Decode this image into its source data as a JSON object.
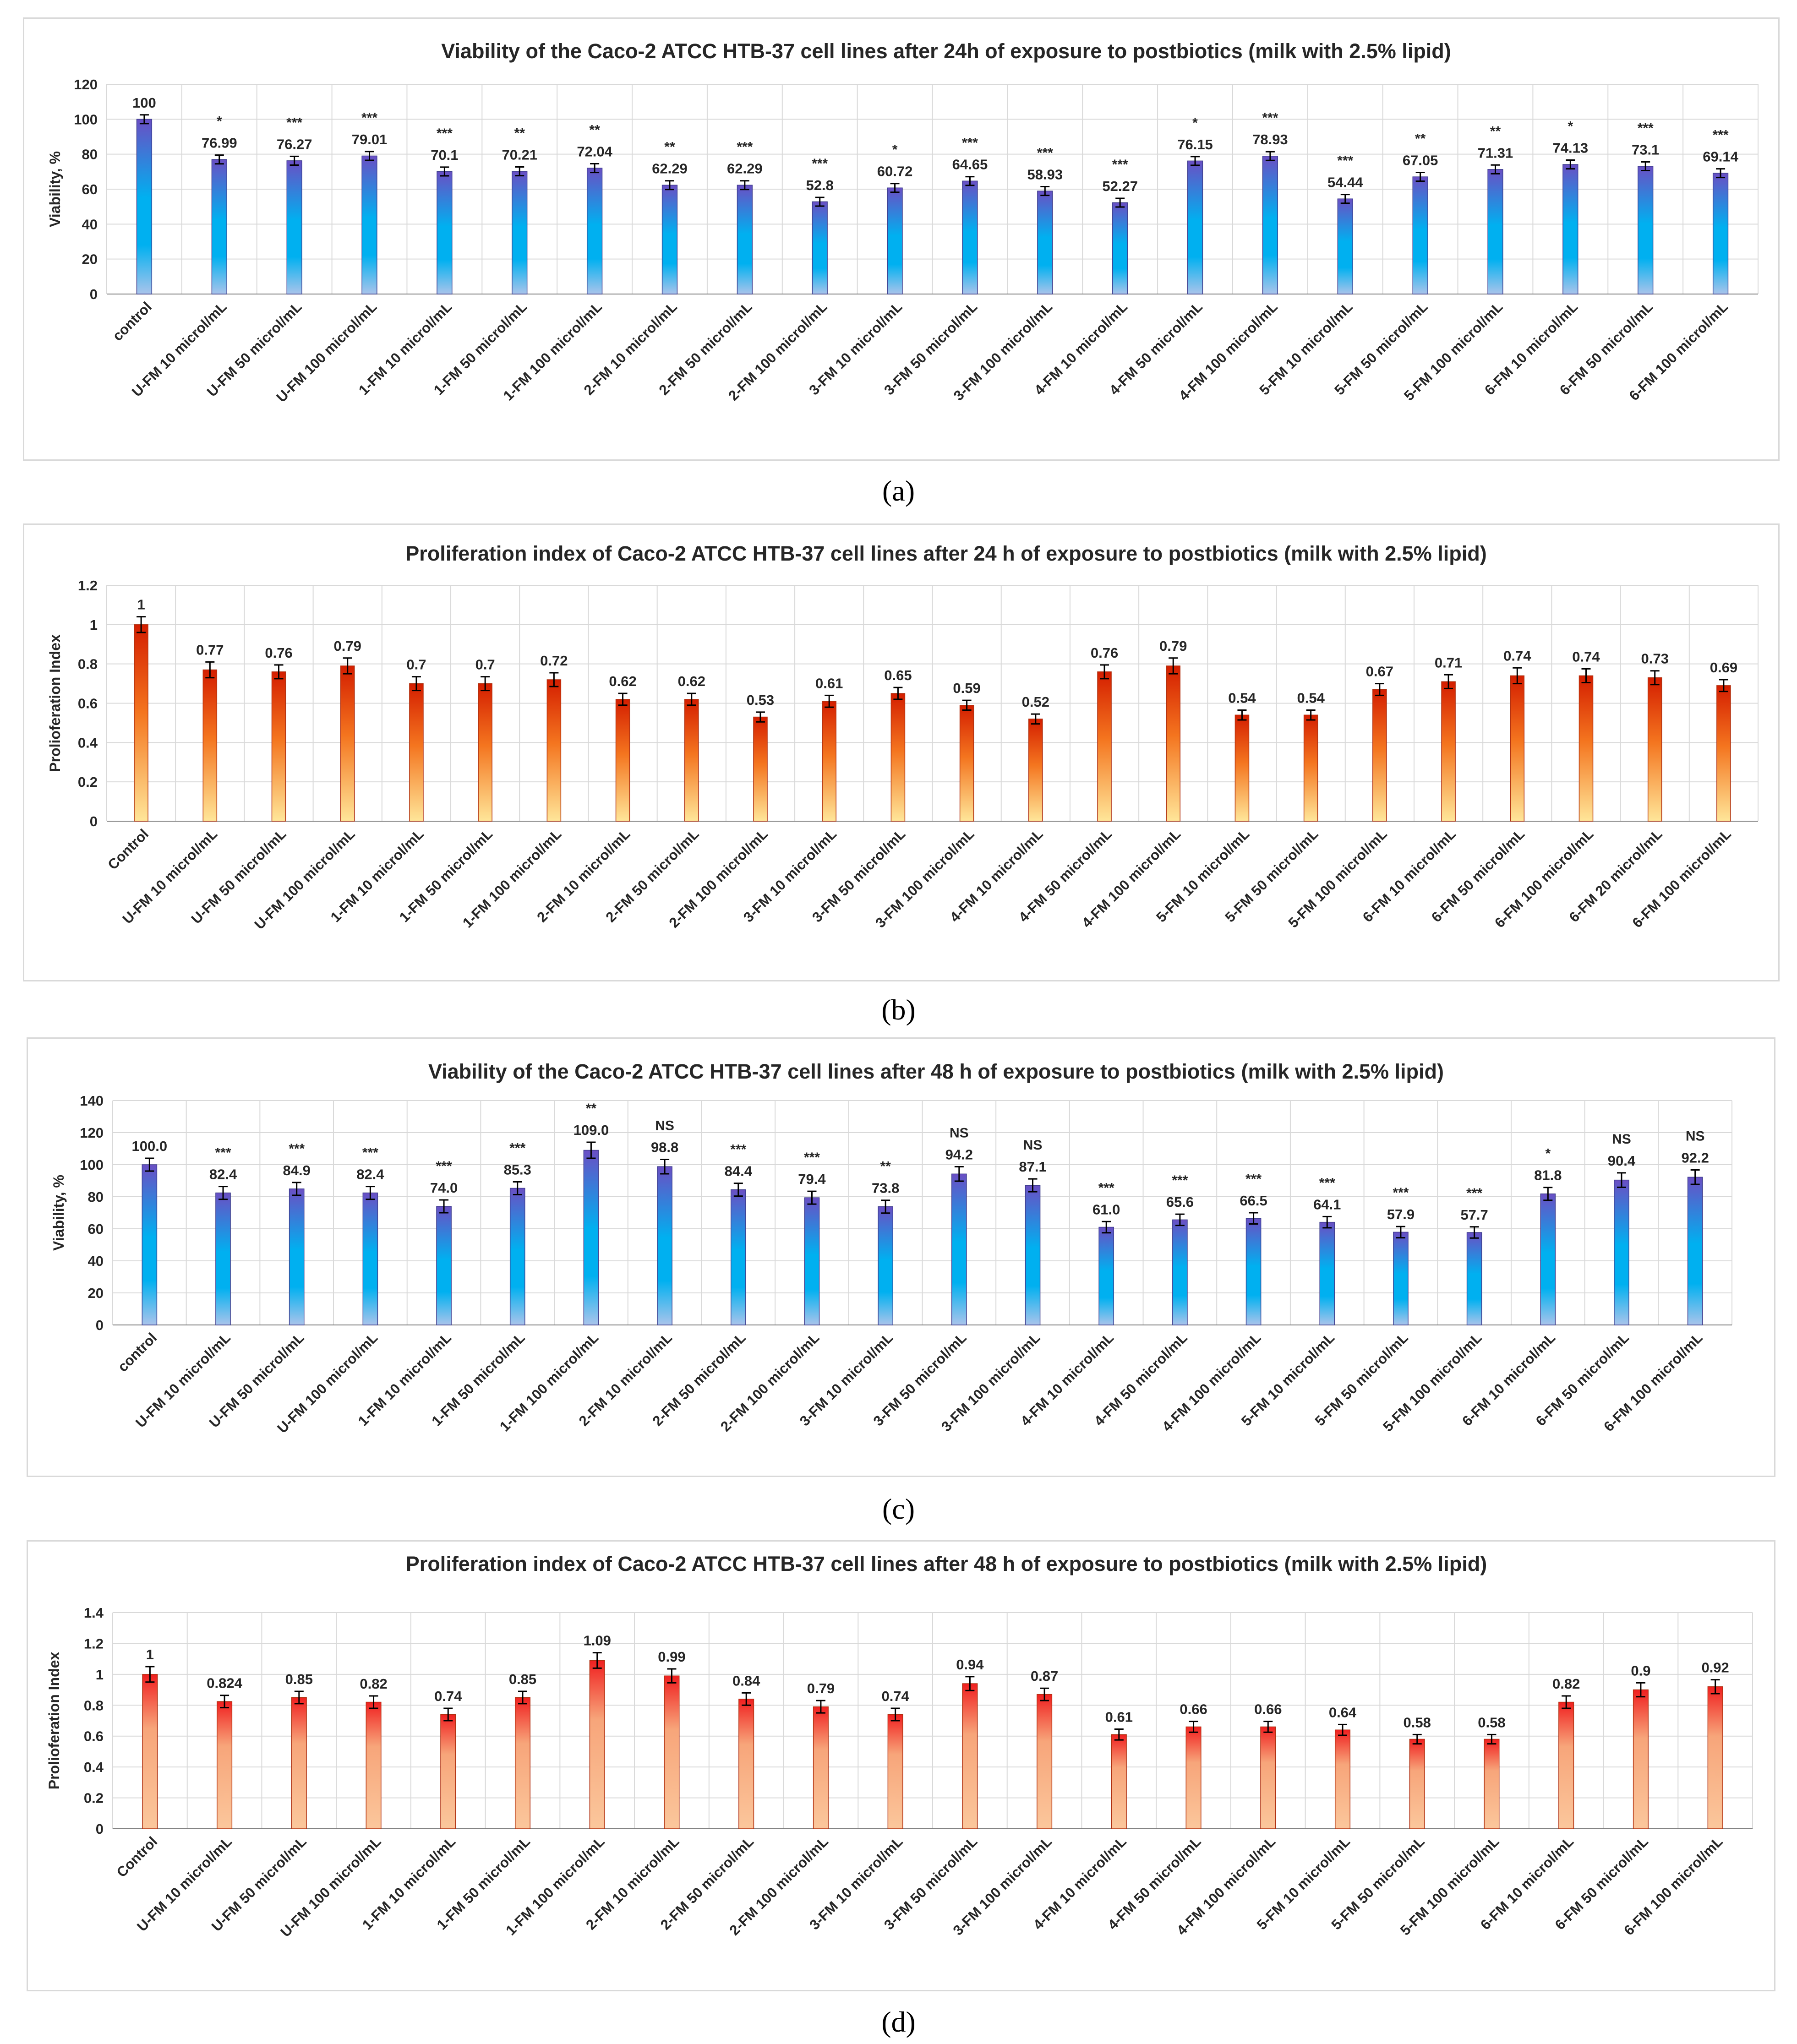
{
  "chart_data": [
    {
      "type": "bar",
      "title": "Viability of the Caco-2  ATCC HTB-37 cell lines after 24h of exposure to postbiotics (milk with 2.5% lipid)",
      "ylabel": "Viability, %",
      "xlabel": "",
      "ylim": [
        0,
        120
      ],
      "yticks": [
        0,
        20,
        40,
        60,
        80,
        100,
        120
      ],
      "grid": true,
      "bar_style": "blue",
      "categories": [
        "control",
        "U-FM 10 microl/mL",
        "U-FM 50 microl/mL",
        "U-FM 100 microl/mL",
        "1-FM 10 microl/mL",
        "1-FM 50 microl/mL",
        "1-FM 100 microl/mL",
        "2-FM 10 microl/mL",
        "2-FM 50 microl/mL",
        "2-FM 100 microl/mL",
        "3-FM 10 microl/mL",
        "3-FM 50 microl/mL",
        "3-FM 100 microl/mL",
        "4-FM 10 microl/mL",
        "4-FM 50 microl/mL",
        "4-FM 100 microl/mL",
        "5-FM 10 microl/mL",
        "5-FM 50 microl/mL",
        "5-FM 100 microl/mL",
        "6-FM 10 microl/mL",
        "6-FM 50 microl/mL",
        "6-FM 100 microl/mL"
      ],
      "values": [
        100,
        76.99,
        76.27,
        79.01,
        70.1,
        70.21,
        72.04,
        62.29,
        62.29,
        52.8,
        60.72,
        64.65,
        58.93,
        52.27,
        76.15,
        78.93,
        54.44,
        67.05,
        71.31,
        74.13,
        73.1,
        69.14
      ],
      "labels": [
        "100",
        "76.99",
        "76.27",
        "79.01",
        "70.1",
        "70.21",
        "72.04",
        "62.29",
        "62.29",
        "52.8",
        "60.72",
        "64.65",
        "58.93",
        "52.27",
        "76.15",
        "78.93",
        "54.44",
        "67.05",
        "71.31",
        "74.13",
        "73.1",
        "69.14"
      ],
      "errors": [
        2.5,
        2.5,
        2.5,
        2.5,
        2.5,
        2.5,
        2.5,
        2.5,
        2.5,
        2.5,
        2.5,
        2.5,
        2.5,
        2.5,
        2.5,
        2.5,
        2.5,
        2.5,
        2.5,
        2.5,
        2.5,
        2.5
      ],
      "significance": [
        "",
        "*",
        "***",
        "***",
        "***",
        "**",
        "**",
        "**",
        "***",
        "***",
        "*",
        "***",
        "***",
        "***",
        "*",
        "***",
        "***",
        "**",
        "**",
        "*",
        "***",
        "***"
      ]
    },
    {
      "type": "bar",
      "title": "Proliferation index of Caco-2 ATCC HTB-37 cell lines after 24 h of exposure to postbiotics  (milk with 2.5% lipid)",
      "ylabel": "Prolioferation Index",
      "xlabel": "",
      "ylim": [
        0,
        1.2
      ],
      "yticks": [
        0,
        0.2,
        0.4,
        0.6,
        0.8,
        1,
        1.2
      ],
      "grid": true,
      "bar_style": "red-yellow",
      "categories": [
        "Control",
        "U-FM 10 microl/mL",
        "U-FM 50 microl/mL",
        "U-FM 100 microl/mL",
        "1-FM 10 microl/mL",
        "1-FM 50 microl/mL",
        "1-FM 100 microl/mL",
        "2-FM 10 microl/mL",
        "2-FM 50 microl/mL",
        "2-FM 100 microl/mL",
        "3-FM 10 microl/mL",
        "3-FM 50 microl/mL",
        "3-FM 100 microl/mL",
        "4-FM 10 microl/mL",
        "4-FM 50 microl/mL",
        "4-FM 100 microl/mL",
        "5-FM 10 microl/mL",
        "5-FM 50 microl/mL",
        "5-FM 100 microl/mL",
        "6-FM 10 microl/mL",
        "6-FM 50 microl/mL",
        "6-FM 100 microl/mL",
        "6-FM 20 microl/mL",
        "6-FM 100 microl/mL"
      ],
      "values": [
        1,
        0.77,
        0.76,
        0.79,
        0.7,
        0.7,
        0.72,
        0.62,
        0.62,
        0.53,
        0.61,
        0.65,
        0.59,
        0.52,
        0.76,
        0.79,
        0.54,
        0.54,
        0.67,
        0.71,
        0.74,
        0.74,
        0.73,
        0.69
      ],
      "labels": [
        "1",
        "0.77",
        "0.76",
        "0.79",
        "0.7",
        "0.7",
        "0.72",
        "0.62",
        "0.62",
        "0.53",
        "0.61",
        "0.65",
        "0.59",
        "0.52",
        "0.76",
        "0.79",
        "0.54",
        "0.54",
        "0.67",
        "0.71",
        "0.74",
        "0.74",
        "0.73",
        "0.69"
      ],
      "errors": [
        0.04,
        0.04,
        0.035,
        0.04,
        0.035,
        0.035,
        0.035,
        0.03,
        0.03,
        0.025,
        0.03,
        0.03,
        0.025,
        0.025,
        0.035,
        0.04,
        0.025,
        0.025,
        0.03,
        0.035,
        0.04,
        0.035,
        0.035,
        0.03
      ],
      "significance": []
    },
    {
      "type": "bar",
      "title": "Viability of the Caco-2  ATCC HTB-37 cell lines after 48 h of exposure to postbiotics (milk with 2.5% lipid)",
      "ylabel": "Viability, %",
      "xlabel": "",
      "ylim": [
        0,
        140
      ],
      "yticks": [
        0,
        20,
        40,
        60,
        80,
        100,
        120,
        140
      ],
      "grid": true,
      "bar_style": "blue",
      "categories": [
        "control",
        "U-FM 10 microl/mL",
        "U-FM 50 microl/mL",
        "U-FM 100 microl/mL",
        "1-FM 10 microl/mL",
        "1-FM 50 microl/mL",
        "1-FM 100 microl/mL",
        "2-FM 10 microl/mL",
        "2-FM 50 microl/mL",
        "2-FM 100 microl/mL",
        "3-FM 10 microl/mL",
        "3-FM 50 microl/mL",
        "3-FM 100 microl/mL",
        "4-FM 10 microl/mL",
        "4-FM 50 microl/mL",
        "4-FM 100 microl/mL",
        "5-FM 10 microl/mL",
        "5-FM 50 microl/mL",
        "5-FM 100 microl/mL",
        "6-FM 10 microl/mL",
        "6-FM 50 microl/mL",
        "6-FM 100 microl/mL"
      ],
      "values": [
        100.0,
        82.4,
        84.9,
        82.4,
        74.0,
        85.3,
        109.0,
        98.8,
        84.4,
        79.4,
        73.8,
        94.2,
        87.1,
        61.0,
        65.6,
        66.5,
        64.1,
        57.9,
        57.7,
        81.8,
        90.4,
        92.2
      ],
      "labels": [
        "100.0",
        "82.4",
        "84.9",
        "82.4",
        "74.0",
        "85.3",
        "109.0",
        "98.8",
        "84.4",
        "79.4",
        "73.8",
        "94.2",
        "87.1",
        "61.0",
        "65.6",
        "66.5",
        "64.1",
        "57.9",
        "57.7",
        "81.8",
        "90.4",
        "92.2"
      ],
      "errors": [
        4,
        4,
        4,
        4,
        4,
        4,
        5,
        4.5,
        4,
        4,
        4,
        4.5,
        4,
        3.5,
        3.5,
        3.5,
        3.5,
        3.5,
        3.5,
        4,
        4.5,
        4.5
      ],
      "significance": [
        "",
        "***",
        "***",
        "***",
        "***",
        "***",
        "**",
        "NS",
        "***",
        "***",
        "**",
        "NS",
        "NS",
        "***",
        "***",
        "***",
        "***",
        "***",
        "***",
        "*",
        "NS",
        "NS"
      ]
    },
    {
      "type": "bar",
      "title": "Proliferation index of Caco-2 ATCC HTB-37 cell lines after 48 h of exposure to postbiotics (milk with 2.5% lipid)",
      "ylabel": "Prolioferation Index",
      "xlabel": "",
      "ylim": [
        0,
        1.4
      ],
      "yticks": [
        0,
        0.2,
        0.4,
        0.6,
        0.8,
        1,
        1.2,
        1.4
      ],
      "grid": true,
      "bar_style": "orange",
      "categories": [
        "Control",
        "U-FM 10 microl/mL",
        "U-FM 50 microl/mL",
        "U-FM 100 microl/mL",
        "1-FM 10 microl/mL",
        "1-FM 50 microl/mL",
        "1-FM 100 microl/mL",
        "2-FM 10 microl/mL",
        "2-FM 50 microl/mL",
        "2-FM 100 microl/mL",
        "3-FM 10 microl/mL",
        "3-FM 50 microl/mL",
        "3-FM 100 microl/mL",
        "4-FM 10 microl/mL",
        "4-FM 50 microl/mL",
        "4-FM 100 microl/mL",
        "5-FM 10 microl/mL",
        "5-FM 50 microl/mL",
        "5-FM 100 microl/mL",
        "6-FM 10 microl/mL",
        "6-FM 50 microl/mL",
        "6-FM 100 microl/mL"
      ],
      "values": [
        1,
        0.824,
        0.85,
        0.82,
        0.74,
        0.85,
        1.09,
        0.99,
        0.84,
        0.79,
        0.74,
        0.94,
        0.87,
        0.61,
        0.66,
        0.66,
        0.64,
        0.58,
        0.58,
        0.82,
        0.9,
        0.92
      ],
      "labels": [
        "1",
        "0.824",
        "0.85",
        "0.82",
        "0.74",
        "0.85",
        "1.09",
        "0.99",
        "0.84",
        "0.79",
        "0.74",
        "0.94",
        "0.87",
        "0.61",
        "0.66",
        "0.66",
        "0.64",
        "0.58",
        "0.58",
        "0.82",
        "0.9",
        "0.92"
      ],
      "errors": [
        0.05,
        0.04,
        0.04,
        0.04,
        0.04,
        0.04,
        0.05,
        0.045,
        0.04,
        0.04,
        0.04,
        0.045,
        0.04,
        0.035,
        0.035,
        0.035,
        0.035,
        0.03,
        0.03,
        0.04,
        0.045,
        0.045
      ],
      "significance": []
    }
  ],
  "captions": [
    "(a)",
    "(b)",
    "(c)",
    "(d)"
  ],
  "colors": {
    "blue_top": "#6a4fc4",
    "blue_mid": "#00b0f0",
    "blue_bottom": "#a9c4eb",
    "red_top": "#d41e00",
    "red_mid": "#f4751f",
    "red_bottom": "#ffe699",
    "orange_top": "#f02020",
    "orange_mid": "#f7a57a",
    "orange_bottom": "#fbc79c",
    "grid": "#d9d9d9",
    "axis": "#7f7f7f",
    "error": "#000000"
  }
}
